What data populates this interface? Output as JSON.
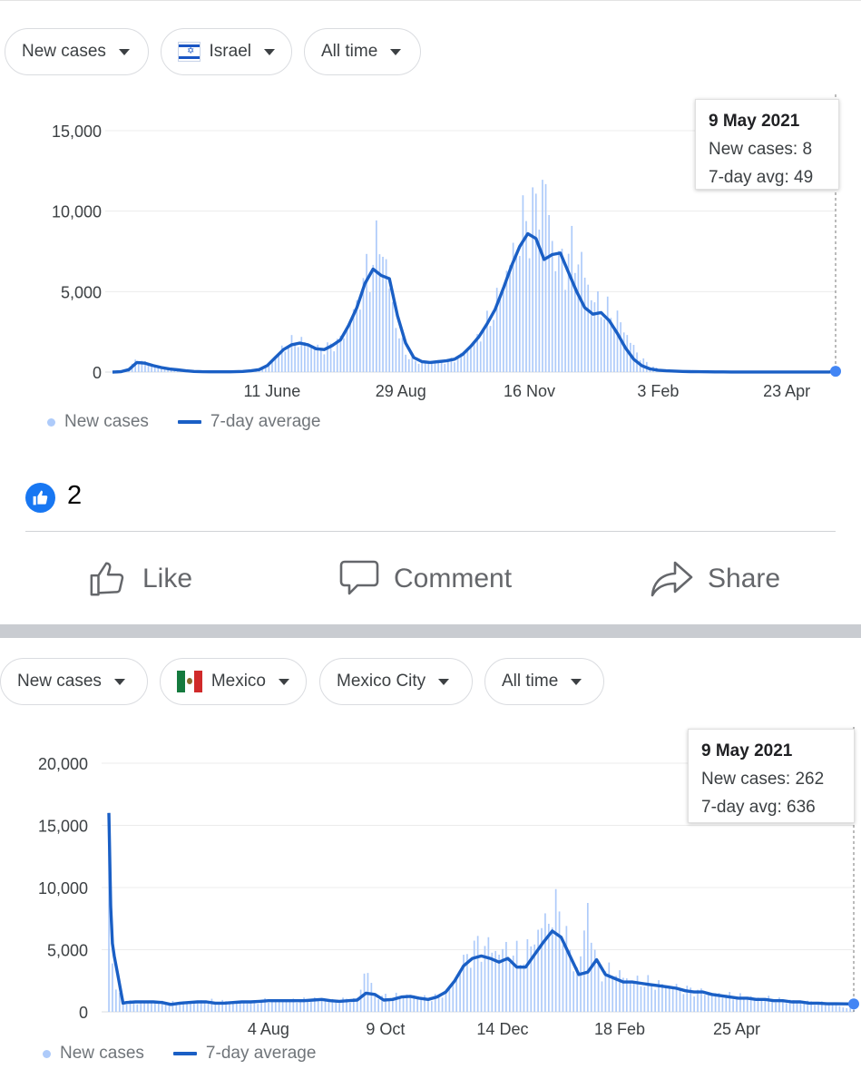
{
  "panels": [
    {
      "filters": [
        {
          "label": "New cases",
          "flag": ""
        },
        {
          "label": "Israel",
          "flag": "israel-flag"
        },
        {
          "label": "All time",
          "flag": ""
        }
      ],
      "tooltip": {
        "date": "9 May 2021",
        "new_cases": "New cases: 8",
        "avg": "7-day avg: 49"
      },
      "legend": {
        "bars": "New cases",
        "line": "7-day average"
      }
    },
    {
      "filters": [
        {
          "label": "New cases",
          "flag": ""
        },
        {
          "label": "Mexico",
          "flag": "mexico-flag"
        },
        {
          "label": "Mexico City",
          "flag": ""
        },
        {
          "label": "All time",
          "flag": ""
        }
      ],
      "tooltip": {
        "date": "9 May 2021",
        "new_cases": "New cases: 262",
        "avg": "7-day avg: 636"
      },
      "legend": {
        "bars": "New cases",
        "line": "7-day average"
      }
    }
  ],
  "social": {
    "like_count": "2",
    "actions": {
      "like": "Like",
      "comment": "Comment",
      "share": "Share"
    }
  },
  "colors": {
    "line": "#1a5fc5",
    "bars": "#aecbfa",
    "accent": "#1877f2"
  },
  "chart_data": [
    {
      "type": "bar",
      "title": "",
      "xlabel": "",
      "ylabel": "",
      "ylim": [
        0,
        15000
      ],
      "yticks": [
        0,
        5000,
        10000,
        15000
      ],
      "ytick_labels": [
        "0",
        "5,000",
        "10,000",
        "15,000"
      ],
      "xlim": [
        0,
        444
      ],
      "xticks": [
        {
          "day": 98,
          "label": "11 June"
        },
        {
          "day": 177,
          "label": "29 Aug"
        },
        {
          "day": 256,
          "label": "16 Nov"
        },
        {
          "day": 335,
          "label": "3 Feb"
        },
        {
          "day": 414,
          "label": "23 Apr"
        }
      ],
      "grid": true,
      "legend_position": "bottom-left",
      "series": [
        {
          "name": "New cases",
          "kind": "bar",
          "x": [
            0,
            5,
            10,
            15,
            20,
            25,
            30,
            35,
            40,
            45,
            50,
            55,
            60,
            65,
            70,
            75,
            80,
            85,
            90,
            95,
            100,
            105,
            110,
            115,
            120,
            125,
            130,
            135,
            140,
            145,
            150,
            155,
            160,
            165,
            170,
            175,
            180,
            185,
            190,
            195,
            200,
            205,
            210,
            215,
            220,
            225,
            230,
            235,
            240,
            245,
            250,
            255,
            260,
            265,
            270,
            275,
            280,
            285,
            290,
            295,
            300,
            305,
            310,
            315,
            320,
            325,
            330,
            335,
            340,
            345,
            350,
            355,
            360,
            365,
            370,
            375,
            380,
            385,
            390,
            395,
            400,
            405,
            410,
            415,
            420,
            425,
            430,
            435,
            440,
            444
          ],
          "y": [
            5,
            20,
            200,
            800,
            600,
            400,
            300,
            200,
            150,
            80,
            40,
            20,
            15,
            15,
            15,
            20,
            40,
            80,
            150,
            400,
            900,
            1500,
            1800,
            1900,
            1800,
            1500,
            1400,
            1700,
            2000,
            3000,
            4200,
            5800,
            7000,
            8500,
            5200,
            2500,
            1200,
            700,
            600,
            600,
            650,
            700,
            800,
            1100,
            1600,
            2200,
            3000,
            4000,
            5500,
            7000,
            8500,
            9500,
            10000,
            12000,
            8000,
            6500,
            7200,
            7500,
            6000,
            4500,
            4000,
            3600,
            3300,
            2500,
            1500,
            800,
            400,
            200,
            120,
            80,
            60,
            40,
            30,
            20,
            15,
            12,
            10,
            8,
            8,
            8,
            8,
            8,
            8,
            8,
            8,
            8,
            8,
            8,
            8,
            8
          ]
        },
        {
          "name": "7-day average",
          "kind": "line",
          "x": [
            0,
            5,
            10,
            15,
            20,
            25,
            30,
            35,
            40,
            45,
            50,
            55,
            60,
            65,
            70,
            75,
            80,
            85,
            90,
            95,
            100,
            105,
            110,
            115,
            120,
            125,
            130,
            135,
            140,
            145,
            150,
            155,
            160,
            165,
            170,
            175,
            180,
            185,
            190,
            195,
            200,
            205,
            210,
            215,
            220,
            225,
            230,
            235,
            240,
            245,
            250,
            255,
            260,
            265,
            270,
            275,
            280,
            285,
            290,
            295,
            300,
            305,
            310,
            315,
            320,
            325,
            330,
            335,
            340,
            345,
            350,
            355,
            360,
            365,
            370,
            375,
            380,
            385,
            390,
            395,
            400,
            405,
            410,
            415,
            420,
            425,
            430,
            435,
            440,
            444
          ],
          "y": [
            0,
            20,
            150,
            600,
            550,
            400,
            280,
            190,
            140,
            80,
            40,
            20,
            15,
            15,
            15,
            20,
            40,
            80,
            150,
            400,
            900,
            1400,
            1700,
            1800,
            1700,
            1450,
            1400,
            1650,
            2000,
            2900,
            4000,
            5500,
            6400,
            6000,
            5800,
            3500,
            1800,
            900,
            650,
            600,
            650,
            700,
            800,
            1100,
            1600,
            2200,
            3000,
            3900,
            5200,
            6600,
            7800,
            8600,
            8300,
            7000,
            7300,
            7400,
            6200,
            5000,
            4000,
            3600,
            3700,
            3200,
            2400,
            1500,
            800,
            400,
            200,
            120,
            80,
            60,
            40,
            30,
            20,
            15,
            12,
            10,
            8,
            8,
            8,
            8,
            8,
            8,
            8,
            8,
            8,
            8,
            8,
            8,
            8,
            49
          ]
        }
      ]
    },
    {
      "type": "bar",
      "title": "",
      "xlabel": "",
      "ylabel": "",
      "ylim": [
        0,
        20000
      ],
      "yticks": [
        0,
        5000,
        10000,
        15000,
        20000
      ],
      "ytick_labels": [
        "0",
        "5,000",
        "10,000",
        "15,000",
        "20,000"
      ],
      "xlim": [
        0,
        420
      ],
      "xticks": [
        {
          "day": 90,
          "label": "4 Aug"
        },
        {
          "day": 156,
          "label": "9 Oct"
        },
        {
          "day": 222,
          "label": "14 Dec"
        },
        {
          "day": 288,
          "label": "18 Feb"
        },
        {
          "day": 354,
          "label": "25 Apr"
        }
      ],
      "grid": true,
      "legend_position": "bottom-left",
      "series": [
        {
          "name": "New cases",
          "kind": "bar",
          "x": [
            0,
            1,
            2,
            3,
            5,
            8,
            10,
            15,
            20,
            25,
            30,
            35,
            40,
            45,
            50,
            55,
            60,
            65,
            70,
            75,
            80,
            85,
            90,
            95,
            100,
            105,
            110,
            115,
            120,
            125,
            130,
            135,
            140,
            145,
            150,
            155,
            160,
            165,
            170,
            175,
            180,
            185,
            190,
            195,
            200,
            205,
            210,
            215,
            220,
            225,
            230,
            235,
            240,
            245,
            250,
            255,
            260,
            265,
            270,
            275,
            280,
            285,
            290,
            295,
            300,
            305,
            310,
            315,
            320,
            325,
            330,
            335,
            340,
            345,
            350,
            355,
            360,
            365,
            370,
            375,
            380,
            385,
            390,
            395,
            400,
            405,
            410,
            415,
            420
          ],
          "y": [
            16000,
            9000,
            4000,
            2500,
            1500,
            900,
            800,
            800,
            800,
            800,
            800,
            700,
            700,
            700,
            800,
            900,
            800,
            800,
            800,
            800,
            800,
            900,
            900,
            900,
            900,
            900,
            900,
            1000,
            1000,
            900,
            900,
            1000,
            1000,
            3600,
            1300,
            1200,
            1200,
            1300,
            1300,
            1200,
            1000,
            1200,
            1600,
            2500,
            4000,
            5000,
            5300,
            5200,
            4800,
            5000,
            4500,
            4500,
            6000,
            7000,
            8000,
            8000,
            4500,
            3200,
            8600,
            3500,
            3200,
            3200,
            2800,
            2500,
            2400,
            2300,
            2200,
            2100,
            2000,
            1800,
            1700,
            1600,
            1500,
            1400,
            1300,
            1200,
            1200,
            1100,
            1100,
            1000,
            900,
            900,
            800,
            800,
            700,
            700,
            600,
            300,
            262
          ]
        },
        {
          "name": "7-day average",
          "kind": "line",
          "x": [
            0,
            1,
            2,
            3,
            5,
            8,
            10,
            15,
            20,
            25,
            30,
            35,
            40,
            45,
            50,
            55,
            60,
            65,
            70,
            75,
            80,
            85,
            90,
            95,
            100,
            105,
            110,
            115,
            120,
            125,
            130,
            135,
            140,
            145,
            150,
            155,
            160,
            165,
            170,
            175,
            180,
            185,
            190,
            195,
            200,
            205,
            210,
            215,
            220,
            225,
            230,
            235,
            240,
            245,
            250,
            255,
            260,
            265,
            270,
            275,
            280,
            285,
            290,
            295,
            300,
            305,
            310,
            315,
            320,
            325,
            330,
            335,
            340,
            345,
            350,
            355,
            360,
            365,
            370,
            375,
            380,
            385,
            390,
            395,
            400,
            405,
            410,
            415,
            420
          ],
          "y": [
            16000,
            8500,
            5500,
            4500,
            3000,
            700,
            750,
            800,
            800,
            800,
            750,
            600,
            700,
            750,
            800,
            800,
            700,
            700,
            750,
            800,
            800,
            850,
            900,
            900,
            900,
            900,
            900,
            950,
            1000,
            900,
            850,
            900,
            950,
            1500,
            1400,
            950,
            1000,
            1200,
            1250,
            1100,
            1000,
            1200,
            1600,
            2500,
            3700,
            4300,
            4500,
            4300,
            4000,
            4300,
            3600,
            3600,
            4600,
            5600,
            6500,
            6000,
            4500,
            3000,
            3200,
            4200,
            3000,
            2700,
            2400,
            2400,
            2300,
            2200,
            2100,
            2000,
            1900,
            1700,
            1600,
            1600,
            1400,
            1300,
            1200,
            1100,
            1100,
            1000,
            1000,
            900,
            900,
            800,
            800,
            700,
            700,
            650,
            650,
            640,
            636
          ]
        }
      ]
    }
  ]
}
